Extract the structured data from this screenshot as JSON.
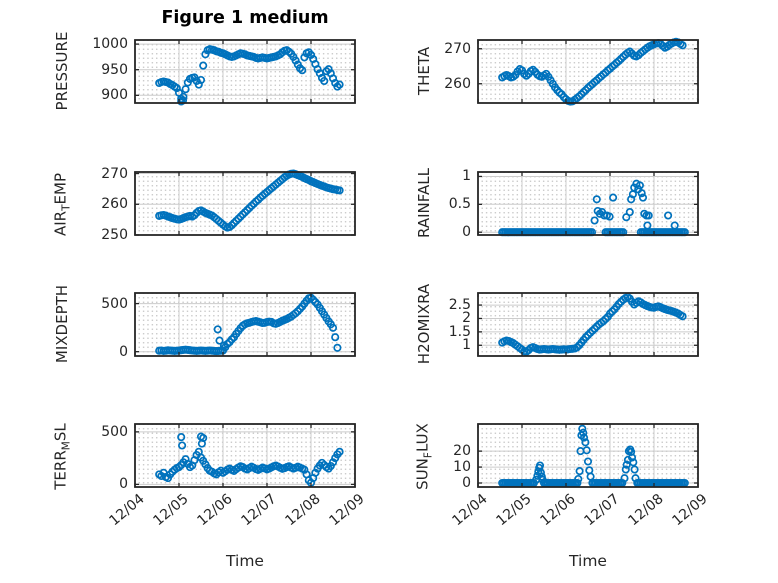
{
  "title": "Figure 1 medium",
  "xlabel": "Time",
  "colors": {
    "marker": "#0072BD",
    "grid_major": "#cccccc",
    "minor_dot": "#c7c7c7",
    "box": "#262626",
    "text": "#262626"
  },
  "marker": {
    "shape": "circle",
    "radius": 3.2,
    "stroke_width": 1.7
  },
  "x_axis": {
    "label": "Time",
    "lim": [
      4,
      9
    ],
    "tick_values": [
      4,
      5,
      6,
      7,
      8,
      9
    ],
    "tick_labels": [
      "12/04",
      "12/05",
      "12/06",
      "12/07",
      "12/08",
      "12/09"
    ]
  },
  "chart_data": [
    {
      "type": "scatter",
      "id": "pressure",
      "row": 0,
      "col": 0,
      "ylabel_parts": [
        {
          "text": "PRESSURE",
          "sub": false
        }
      ],
      "ylim": [
        885,
        1008
      ],
      "yticks": [
        {
          "v": 900,
          "label": "900"
        },
        {
          "v": 950,
          "label": "950"
        },
        {
          "v": 1000,
          "label": "1000"
        }
      ],
      "series": {
        "x0": 4.55,
        "dx": 0.05,
        "y": [
          924,
          926,
          927,
          926,
          925,
          922,
          920,
          917,
          914,
          905,
          893,
          897,
          912,
          925,
          932,
          934,
          935,
          928,
          921,
          930,
          958,
          980,
          988,
          990,
          989,
          988,
          986,
          985,
          983,
          982,
          980,
          978,
          976,
          975,
          976,
          978,
          980,
          982,
          981,
          980,
          978,
          977,
          976,
          975,
          973,
          972,
          973,
          974,
          973,
          972,
          973,
          974,
          975,
          976,
          978,
          980,
          984,
          987,
          988,
          985,
          981,
          975,
          968,
          960,
          953,
          949,
          974,
          982,
          984,
          979,
          971,
          961,
          951,
          943,
          934,
          928,
          947,
          951,
          943,
          933,
          924,
          917,
          921
        ]
      },
      "points": [
        [
          5.05,
          888
        ],
        [
          5.09,
          890
        ]
      ]
    },
    {
      "type": "scatter",
      "id": "theta",
      "row": 0,
      "col": 1,
      "ylabel_parts": [
        {
          "text": "THETA",
          "sub": false
        }
      ],
      "ylim": [
        254.5,
        272.5
      ],
      "yticks": [
        {
          "v": 260,
          "label": "260"
        },
        {
          "v": 270,
          "label": "270"
        }
      ],
      "series": {
        "x0": 4.55,
        "dx": 0.05,
        "y": [
          261.8,
          262.2,
          262.5,
          262.2,
          261.8,
          262.0,
          262.5,
          263.5,
          264.2,
          263.8,
          262.8,
          262.3,
          262.8,
          263.6,
          264.0,
          263.4,
          262.6,
          262.2,
          262.0,
          262.4,
          262.8,
          262.0,
          261.0,
          260.0,
          259.0,
          258.2,
          257.5,
          257.0,
          256.2,
          255.6,
          255.1,
          254.9,
          255.0,
          255.4,
          255.9,
          256.4,
          257.0,
          257.6,
          258.2,
          258.8,
          259.4,
          259.9,
          260.5,
          261.0,
          261.6,
          262.1,
          262.7,
          263.2,
          263.8,
          264.3,
          264.9,
          265.4,
          266.0,
          266.5,
          267.1,
          267.7,
          268.3,
          268.8,
          269.2,
          268.6,
          268.0,
          267.8,
          268.2,
          268.8,
          269.3,
          269.8,
          270.3,
          270.7,
          271.0,
          271.3,
          271.5,
          271.6,
          271.4,
          270.8,
          270.3,
          270.6,
          271.1,
          271.5,
          271.8,
          272.0,
          271.8,
          271.4,
          271.0
        ]
      }
    },
    {
      "type": "scatter",
      "id": "air-temp",
      "row": 1,
      "col": 0,
      "ylabel_parts": [
        {
          "text": "AIR",
          "sub": false
        },
        {
          "text": "T",
          "sub": true
        },
        {
          "text": "EMP",
          "sub": false
        }
      ],
      "ylim": [
        250,
        270.5
      ],
      "yticks": [
        {
          "v": 250,
          "label": "250"
        },
        {
          "v": 260,
          "label": "260"
        },
        {
          "v": 270,
          "label": "270"
        }
      ],
      "series": {
        "x0": 4.55,
        "dx": 0.05,
        "y": [
          256.2,
          256.4,
          256.5,
          256.3,
          256.0,
          255.8,
          255.5,
          255.3,
          255.1,
          255.0,
          255.2,
          255.5,
          255.8,
          256.0,
          256.2,
          256.0,
          256.4,
          257.2,
          257.8,
          258.0,
          257.6,
          257.2,
          256.9,
          256.6,
          256.3,
          255.8,
          255.2,
          254.6,
          254.0,
          253.4,
          252.8,
          252.4,
          252.6,
          253.2,
          253.9,
          254.6,
          255.3,
          256.0,
          256.7,
          257.4,
          258.1,
          258.8,
          259.5,
          260.2,
          260.9,
          261.5,
          262.2,
          262.8,
          263.4,
          264.0,
          264.6,
          265.2,
          265.8,
          266.4,
          267.0,
          267.6,
          268.2,
          268.8,
          269.3,
          269.7,
          269.9,
          270.0,
          269.8,
          269.5,
          269.2,
          268.9,
          268.5,
          268.2,
          267.9,
          267.5,
          267.2,
          266.9,
          266.6,
          266.3,
          266.0,
          265.8,
          265.5,
          265.3,
          265.1,
          264.9,
          264.8,
          264.6,
          264.5
        ]
      }
    },
    {
      "type": "scatter",
      "id": "rainfall",
      "row": 1,
      "col": 1,
      "ylabel_parts": [
        {
          "text": "RAINFALL",
          "sub": false
        }
      ],
      "ylim": [
        -0.05,
        1.08
      ],
      "yticks": [
        {
          "v": 0,
          "label": "0"
        },
        {
          "v": 0.5,
          "label": "0.5"
        },
        {
          "v": 1,
          "label": "1"
        }
      ],
      "zero_step": 0.04,
      "zero_runs": [
        [
          4.55,
          6.62
        ],
        [
          6.9,
          7.3
        ],
        [
          7.7,
          8.72
        ]
      ],
      "points": [
        [
          6.65,
          0.21
        ],
        [
          6.7,
          0.59
        ],
        [
          6.72,
          0.38
        ],
        [
          6.77,
          0.33
        ],
        [
          6.82,
          0.36
        ],
        [
          6.87,
          0.3
        ],
        [
          6.93,
          0.3
        ],
        [
          6.99,
          0.28
        ],
        [
          7.07,
          0.62
        ],
        [
          7.37,
          0.27
        ],
        [
          7.45,
          0.36
        ],
        [
          7.48,
          0.59
        ],
        [
          7.52,
          0.68
        ],
        [
          7.55,
          0.8
        ],
        [
          7.6,
          0.87
        ],
        [
          7.64,
          0.77
        ],
        [
          7.68,
          0.84
        ],
        [
          7.72,
          0.7
        ],
        [
          7.75,
          0.62
        ],
        [
          7.78,
          0.33
        ],
        [
          7.83,
          0.3
        ],
        [
          7.88,
          0.3
        ],
        [
          7.85,
          0.12
        ],
        [
          8.32,
          0.3
        ],
        [
          8.47,
          0.12
        ]
      ]
    },
    {
      "type": "scatter",
      "id": "mixdepth",
      "row": 2,
      "col": 0,
      "ylabel_parts": [
        {
          "text": "MIXDEPTH",
          "sub": false
        }
      ],
      "ylim": [
        -45,
        610
      ],
      "yticks": [
        {
          "v": 0,
          "label": "0"
        },
        {
          "v": 500,
          "label": "500"
        }
      ],
      "series": {
        "x0": 4.55,
        "dx": 0.05,
        "y": [
          10,
          12,
          8,
          10,
          14,
          12,
          10,
          8,
          10,
          12,
          15,
          18,
          20,
          18,
          15,
          12,
          10,
          8,
          10,
          12,
          10,
          8,
          10,
          12,
          10,
          8,
          6,
          8,
          10,
          12,
          45,
          80,
          100,
          128,
          150,
          185,
          215,
          245,
          270,
          285,
          295,
          300,
          308,
          315,
          318,
          312,
          305,
          298,
          300,
          308,
          312,
          310,
          295,
          290,
          298,
          310,
          322,
          330,
          340,
          352,
          365,
          382,
          400,
          420,
          445,
          470,
          500,
          530,
          555,
          560,
          540,
          515,
          490,
          455,
          420,
          385,
          350,
          315,
          285,
          248,
          150,
          40
        ]
      },
      "points": [
        [
          5.88,
          232
        ],
        [
          5.92,
          115
        ],
        [
          6.02,
          62
        ]
      ]
    },
    {
      "type": "scatter",
      "id": "h2omixra",
      "row": 2,
      "col": 1,
      "ylabel_parts": [
        {
          "text": "H2OMIXRA",
          "sub": false
        }
      ],
      "ylim": [
        0.6,
        2.95
      ],
      "yticks": [
        {
          "v": 1,
          "label": "1"
        },
        {
          "v": 1.5,
          "label": "1.5"
        },
        {
          "v": 2,
          "label": "2"
        },
        {
          "v": 2.5,
          "label": "2.5"
        }
      ],
      "series": {
        "x0": 4.55,
        "dx": 0.05,
        "y": [
          1.1,
          1.15,
          1.18,
          1.16,
          1.12,
          1.08,
          1.02,
          0.96,
          0.9,
          0.84,
          0.78,
          0.76,
          0.82,
          0.9,
          0.93,
          0.9,
          0.86,
          0.84,
          0.85,
          0.86,
          0.85,
          0.84,
          0.85,
          0.86,
          0.85,
          0.84,
          0.83,
          0.84,
          0.85,
          0.84,
          0.85,
          0.86,
          0.87,
          0.88,
          0.92,
          1.0,
          1.1,
          1.2,
          1.3,
          1.38,
          1.46,
          1.54,
          1.62,
          1.7,
          1.78,
          1.84,
          1.9,
          1.98,
          2.06,
          2.18,
          2.26,
          2.34,
          2.44,
          2.54,
          2.62,
          2.7,
          2.76,
          2.8,
          2.74,
          2.62,
          2.52,
          2.58,
          2.64,
          2.6,
          2.54,
          2.5,
          2.46,
          2.43,
          2.41,
          2.4,
          2.43,
          2.45,
          2.42,
          2.38,
          2.35,
          2.32,
          2.3,
          2.28,
          2.25,
          2.22,
          2.18,
          2.13,
          2.08
        ]
      }
    },
    {
      "type": "scatter",
      "id": "terr-msl",
      "row": 3,
      "col": 0,
      "ylabel_parts": [
        {
          "text": "TERR",
          "sub": false
        },
        {
          "text": "M",
          "sub": true
        },
        {
          "text": "SL",
          "sub": false
        }
      ],
      "ylim": [
        -25,
        575
      ],
      "yticks": [
        {
          "v": 0,
          "label": "0"
        },
        {
          "v": 500,
          "label": "500"
        }
      ],
      "series": {
        "x0": 4.55,
        "dx": 0.05,
        "y": [
          95,
          80,
          110,
          70,
          60,
          95,
          120,
          140,
          155,
          165,
          185,
          210,
          240,
          195,
          165,
          180,
          230,
          280,
          310,
          255,
          225,
          190,
          155,
          130,
          120,
          105,
          95,
          115,
          130,
          110,
          125,
          140,
          150,
          138,
          128,
          145,
          160,
          172,
          165,
          150,
          142,
          155,
          168,
          158,
          145,
          138,
          148,
          160,
          152,
          143,
          150,
          162,
          172,
          180,
          170,
          158,
          148,
          155,
          165,
          172,
          160,
          150,
          158,
          168,
          160,
          150,
          140,
          95,
          40,
          15,
          60,
          110,
          150,
          180,
          205,
          185,
          165,
          150,
          175,
          210,
          250,
          285,
          310
        ]
      },
      "points": [
        [
          5.05,
          450
        ],
        [
          5.07,
          370
        ],
        [
          5.5,
          455
        ],
        [
          5.52,
          388
        ],
        [
          5.55,
          442
        ]
      ]
    },
    {
      "type": "scatter",
      "id": "sun-flux",
      "row": 3,
      "col": 1,
      "ylabel_parts": [
        {
          "text": "SUN",
          "sub": false
        },
        {
          "text": "F",
          "sub": true
        },
        {
          "text": "LUX",
          "sub": false
        }
      ],
      "ylim": [
        -2.5,
        37
      ],
      "yticks": [
        {
          "v": 0,
          "label": "0"
        },
        {
          "v": 10,
          "label": "10"
        },
        {
          "v": 20,
          "label": "20"
        }
      ],
      "zero_step": 0.04,
      "zero_runs": [
        [
          4.55,
          5.3
        ],
        [
          5.5,
          6.26
        ],
        [
          6.6,
          7.3
        ],
        [
          7.62,
          8.72
        ]
      ],
      "points": [
        [
          5.32,
          2
        ],
        [
          5.35,
          4.5
        ],
        [
          5.37,
          7
        ],
        [
          5.39,
          9.5
        ],
        [
          5.41,
          11
        ],
        [
          5.43,
          6.5
        ],
        [
          5.45,
          4
        ],
        [
          5.47,
          2
        ],
        [
          6.28,
          2.5
        ],
        [
          6.31,
          7.5
        ],
        [
          6.33,
          20
        ],
        [
          6.35,
          30
        ],
        [
          6.37,
          34
        ],
        [
          6.39,
          31.5
        ],
        [
          6.41,
          28.5
        ],
        [
          6.44,
          25.5
        ],
        [
          6.47,
          20.5
        ],
        [
          6.5,
          13.5
        ],
        [
          6.53,
          8
        ],
        [
          6.56,
          4
        ],
        [
          7.33,
          3
        ],
        [
          7.36,
          8.5
        ],
        [
          7.38,
          11.5
        ],
        [
          7.41,
          14.5
        ],
        [
          7.43,
          20
        ],
        [
          7.46,
          21
        ],
        [
          7.48,
          19.5
        ],
        [
          7.5,
          16
        ],
        [
          7.53,
          13
        ],
        [
          7.56,
          8.5
        ],
        [
          7.58,
          3
        ]
      ]
    }
  ]
}
